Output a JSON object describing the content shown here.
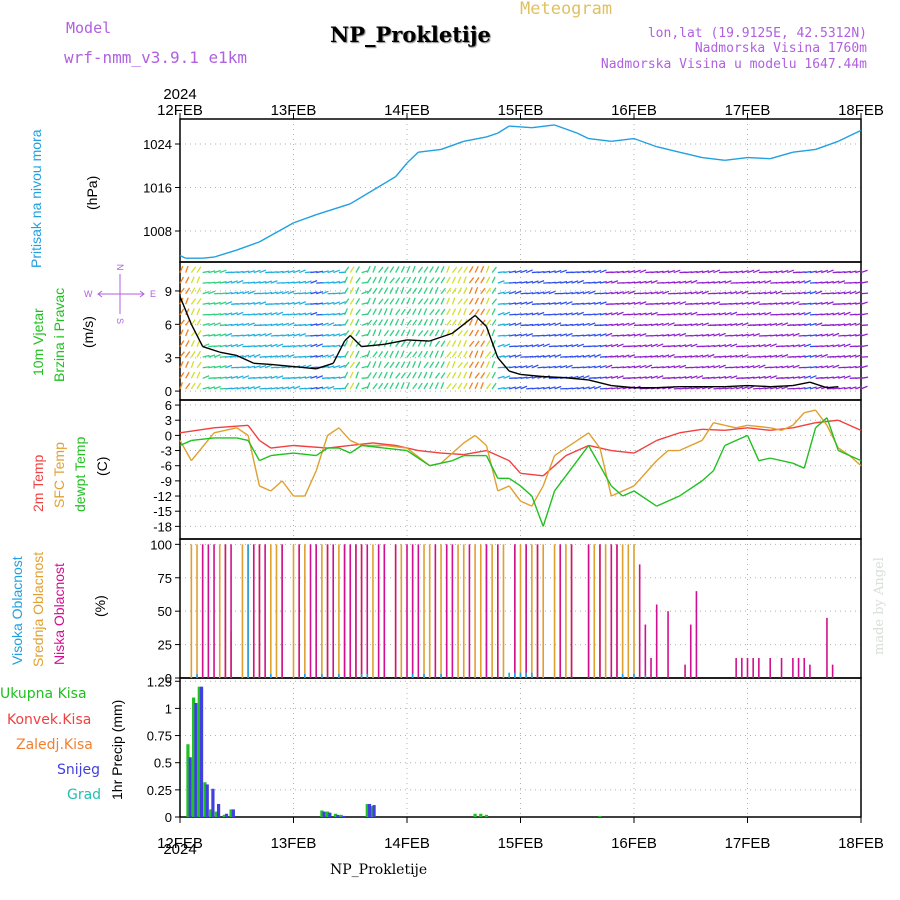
{
  "header": {
    "title": "NP_Prokletije",
    "meteogram": "Meteogram",
    "model_label": "Model",
    "model_name": "wrf-nmm_v3.9.1 e1km",
    "lonlat": "lon,lat (19.9125E, 42.5312N)",
    "altitude": "Nadmorska Visina 1760m",
    "model_altitude": "Nadmorska Visina u modelu 1647.44m",
    "colors": {
      "title": "#000000",
      "meteogram": "#e0c060",
      "model": "#b060e0",
      "info": "#b060e0"
    }
  },
  "footer": {
    "station": "NP_Prokletije",
    "credit": "made by Angel"
  },
  "panels": {
    "pressure": {
      "label": "Pritisak na nivou mora",
      "unit": "(hPa)",
      "label_color": "#20a0e0"
    },
    "wind": {
      "label_line1": "10m Vjetar",
      "label_line2": "Brzina i Pravac",
      "unit": "(m/s)",
      "label_color": "#20c020",
      "compass": {
        "n": "N",
        "s": "S",
        "w": "W",
        "e": "E"
      }
    },
    "temp": {
      "labels": [
        {
          "text": "2m Temp",
          "color": "#f04040"
        },
        {
          "text": "SFC Temp",
          "color": "#e0a030"
        },
        {
          "text": "dewpt Temp",
          "color": "#20c020"
        }
      ],
      "unit": "(C)"
    },
    "cloud": {
      "labels": [
        {
          "text": "Visoka Oblacnost",
          "color": "#20a0e0"
        },
        {
          "text": "Srednja Oblacnost",
          "color": "#e0a030"
        },
        {
          "text": "Niska Oblacnost",
          "color": "#d01090"
        }
      ],
      "unit": "(%)"
    },
    "precip": {
      "unit_label": "1hr Precip (mm)",
      "legend": [
        {
          "text": "Ukupna Kisa",
          "color": "#20c020"
        },
        {
          "text": "Konvek.Kisa",
          "color": "#f04040"
        },
        {
          "text": "Zaledj.Kisa",
          "color": "#f08030"
        },
        {
          "text": "Snijeg",
          "color": "#4040e0"
        },
        {
          "text": "Grad",
          "color": "#20c0b0"
        }
      ]
    }
  },
  "chart_data": [
    {
      "type": "line",
      "panel": "pressure",
      "x_ticks": [
        "12FEB",
        "13FEB",
        "14FEB",
        "15FEB",
        "16FEB",
        "17FEB",
        "18FEB"
      ],
      "year": "2024",
      "xlim": [
        0,
        6
      ],
      "yticks": [
        "1008",
        "1016",
        "1024"
      ],
      "ylim": [
        1002.3,
        1028.6
      ],
      "series": [
        {
          "color": "#20a0e0",
          "x": [
            0,
            0.05,
            0.2,
            0.3,
            0.5,
            0.7,
            1.0,
            1.2,
            1.5,
            1.7,
            1.9,
            2.0,
            2.1,
            2.3,
            2.5,
            2.7,
            2.8,
            2.9,
            3.1,
            3.3,
            3.5,
            3.6,
            3.8,
            4.0,
            4.2,
            4.4,
            4.6,
            4.8,
            5.0,
            5.2,
            5.4,
            5.6,
            5.8,
            6.0
          ],
          "y": [
            1003.5,
            1003.0,
            1003.0,
            1003.2,
            1004.5,
            1006.0,
            1009.5,
            1011.0,
            1013.0,
            1015.5,
            1018.0,
            1020.5,
            1022.5,
            1023.0,
            1024.5,
            1025.3,
            1026.0,
            1027.3,
            1027.0,
            1027.5,
            1026.0,
            1025.0,
            1024.5,
            1025.0,
            1023.5,
            1022.5,
            1021.5,
            1021.0,
            1021.5,
            1021.3,
            1022.5,
            1023.0,
            1024.5,
            1026.5
          ]
        }
      ]
    },
    {
      "type": "line",
      "panel": "wind",
      "xlim": [
        0,
        6
      ],
      "yticks": [
        "0",
        "3",
        "6",
        "9"
      ],
      "ylim": [
        -0.8,
        11.6
      ],
      "series": [
        {
          "name": "speed",
          "color": "#000000",
          "x": [
            0,
            0.1,
            0.2,
            0.35,
            0.5,
            0.65,
            0.8,
            1.0,
            1.2,
            1.35,
            1.45,
            1.5,
            1.6,
            1.8,
            2.0,
            2.2,
            2.4,
            2.6,
            2.7,
            2.8,
            2.9,
            3.0,
            3.2,
            3.4,
            3.6,
            3.8,
            4.0,
            4.2,
            4.4,
            4.6,
            4.8,
            5.0,
            5.2,
            5.4,
            5.55,
            5.7,
            5.8
          ],
          "y": [
            8.5,
            6.0,
            4.0,
            3.5,
            3.2,
            2.5,
            2.4,
            2.2,
            2.0,
            2.5,
            4.5,
            5.0,
            4.0,
            4.2,
            4.6,
            4.5,
            5.2,
            6.8,
            5.8,
            3.0,
            1.8,
            1.5,
            1.3,
            1.2,
            1.0,
            0.5,
            0.3,
            0.3,
            0.4,
            0.4,
            0.4,
            0.5,
            0.4,
            0.5,
            0.8,
            0.3,
            0.4
          ]
        }
      ]
    },
    {
      "type": "line",
      "panel": "temp",
      "xlim": [
        0,
        6
      ],
      "yticks": [
        "-18",
        "-15",
        "-12",
        "-9",
        "-6",
        "-3",
        "0",
        "3",
        "6"
      ],
      "ylim": [
        -20.5,
        7.0
      ],
      "series": [
        {
          "color": "#f04040",
          "x": [
            0,
            0.3,
            0.6,
            0.7,
            0.8,
            1.0,
            1.3,
            1.5,
            1.7,
            1.9,
            2.1,
            2.3,
            2.5,
            2.7,
            2.9,
            3.0,
            3.2,
            3.4,
            3.6,
            3.8,
            4.0,
            4.2,
            4.4,
            4.6,
            4.8,
            5.0,
            5.2,
            5.4,
            5.6,
            5.8,
            6.0
          ],
          "y": [
            0.5,
            1.5,
            2.0,
            -1.0,
            -2.5,
            -2.0,
            -2.5,
            -2.0,
            -1.5,
            -2.0,
            -3.0,
            -3.5,
            -3.8,
            -3.0,
            -5.0,
            -7.5,
            -8.0,
            -4.0,
            -2.0,
            -3.0,
            -3.5,
            -1.0,
            0.5,
            1.2,
            1.0,
            1.5,
            1.0,
            1.5,
            2.5,
            3.0,
            1.0
          ]
        },
        {
          "color": "#e0a030",
          "x": [
            0,
            0.1,
            0.3,
            0.5,
            0.6,
            0.7,
            0.8,
            0.9,
            1.0,
            1.1,
            1.2,
            1.3,
            1.4,
            1.5,
            1.6,
            1.8,
            2.0,
            2.2,
            2.3,
            2.5,
            2.6,
            2.7,
            2.8,
            2.9,
            3.0,
            3.1,
            3.2,
            3.3,
            3.5,
            3.6,
            3.7,
            3.8,
            4.0,
            4.2,
            4.3,
            4.4,
            4.6,
            4.7,
            4.8,
            4.9,
            5.0,
            5.2,
            5.3,
            5.4,
            5.5,
            5.6,
            5.7,
            5.8,
            5.9,
            6.0
          ],
          "y": [
            -1.0,
            -5.0,
            0.5,
            1.5,
            0.0,
            -10.0,
            -11.0,
            -9.0,
            -12.0,
            -12.0,
            -7.0,
            0.0,
            1.5,
            -1.0,
            -2.0,
            -2.0,
            -2.5,
            -6.0,
            -5.5,
            -1.5,
            0.0,
            -2.0,
            -11.0,
            -10.0,
            -13.0,
            -14.0,
            -10.0,
            -4.0,
            -1.0,
            0.5,
            -2.5,
            -12.0,
            -10.0,
            -5.0,
            -3.0,
            -3.0,
            -1.0,
            2.5,
            2.0,
            1.5,
            2.0,
            1.5,
            1.0,
            2.0,
            4.5,
            5.0,
            2.0,
            -2.5,
            -4.0,
            -6.0
          ]
        },
        {
          "color": "#20c020",
          "x": [
            0,
            0.1,
            0.3,
            0.5,
            0.6,
            0.7,
            0.8,
            1.0,
            1.2,
            1.3,
            1.4,
            1.5,
            1.6,
            1.8,
            2.0,
            2.2,
            2.4,
            2.5,
            2.6,
            2.7,
            2.8,
            2.9,
            3.0,
            3.1,
            3.2,
            3.3,
            3.4,
            3.5,
            3.6,
            3.7,
            3.8,
            3.9,
            4.0,
            4.2,
            4.4,
            4.6,
            4.7,
            4.8,
            5.0,
            5.1,
            5.2,
            5.4,
            5.5,
            5.6,
            5.7,
            5.8,
            5.9,
            6.0
          ],
          "y": [
            -2.0,
            -1.0,
            -0.5,
            -0.5,
            -1.0,
            -5.0,
            -4.0,
            -3.5,
            -4.0,
            -2.5,
            -2.5,
            -3.5,
            -2.0,
            -2.5,
            -3.0,
            -6.0,
            -5.0,
            -4.0,
            -4.0,
            -4.0,
            -8.5,
            -8.5,
            -10.0,
            -12.0,
            -18.0,
            -11.0,
            -8.0,
            -5.0,
            -2.0,
            -6.0,
            -10.0,
            -12.0,
            -11.0,
            -14.0,
            -12.0,
            -9.0,
            -7.0,
            -2.0,
            0.0,
            -5.0,
            -4.5,
            -5.5,
            -6.5,
            1.5,
            3.5,
            -3.0,
            -4.0,
            -5.0
          ]
        }
      ]
    },
    {
      "type": "bar",
      "panel": "cloud",
      "xlim": [
        0,
        6
      ],
      "yticks": [
        "0",
        "25",
        "50",
        "75",
        "100"
      ],
      "ylim": [
        0,
        104
      ],
      "series": [
        {
          "name": "Srednja Oblacnost",
          "color": "#e0a030",
          "x": [
            0.1,
            0.15,
            0.2,
            0.35,
            0.4,
            0.45,
            0.55,
            0.6,
            0.65,
            0.7,
            0.8,
            0.85,
            0.9,
            1.0,
            1.05,
            1.1,
            1.2,
            1.25,
            1.3,
            1.4,
            1.45,
            1.55,
            1.6,
            1.7,
            1.8,
            1.9,
            1.95,
            2.05,
            2.15,
            2.2,
            2.3,
            2.35,
            2.45,
            2.5,
            2.6,
            2.65,
            2.7,
            2.75,
            2.8,
            2.85,
            2.95,
            3.0,
            3.05,
            3.1,
            3.15,
            3.2,
            3.3,
            3.35,
            3.4,
            3.45,
            3.6,
            3.65,
            3.7,
            3.75,
            3.8,
            3.85,
            3.9,
            3.95,
            4.0
          ],
          "values": [
            100,
            100,
            100,
            100,
            100,
            35,
            100,
            100,
            100,
            100,
            100,
            100,
            100,
            100,
            100,
            100,
            100,
            100,
            100,
            100,
            100,
            100,
            100,
            100,
            100,
            100,
            100,
            100,
            100,
            100,
            100,
            100,
            100,
            100,
            100,
            100,
            100,
            100,
            100,
            100,
            100,
            100,
            100,
            100,
            100,
            100,
            100,
            100,
            100,
            100,
            100,
            100,
            100,
            100,
            100,
            100,
            100,
            100,
            100
          ]
        },
        {
          "name": "Niska Oblacnost",
          "color": "#d01090",
          "x": [
            0.2,
            0.25,
            0.3,
            0.4,
            0.45,
            0.65,
            0.7,
            0.75,
            0.9,
            1.05,
            1.15,
            1.2,
            1.3,
            1.35,
            1.45,
            1.5,
            1.55,
            1.6,
            1.65,
            1.75,
            1.8,
            1.9,
            2.0,
            2.05,
            2.1,
            2.25,
            2.35,
            2.4,
            2.55,
            2.7,
            2.8,
            2.95,
            3.05,
            3.15,
            3.35,
            3.45,
            3.6,
            3.7,
            3.8,
            3.85,
            4.05,
            4.1,
            4.15,
            4.2,
            4.3,
            4.45,
            4.5,
            4.55,
            4.9,
            4.95,
            5.0,
            5.05,
            5.1,
            5.2,
            5.3,
            5.4,
            5.45,
            5.5,
            5.55,
            5.7,
            5.75
          ],
          "values": [
            100,
            100,
            100,
            100,
            100,
            100,
            100,
            100,
            100,
            100,
            100,
            100,
            100,
            100,
            100,
            100,
            100,
            100,
            100,
            100,
            100,
            100,
            100,
            100,
            100,
            100,
            100,
            100,
            100,
            100,
            100,
            100,
            100,
            100,
            100,
            100,
            100,
            100,
            100,
            100,
            85,
            40,
            15,
            55,
            50,
            10,
            40,
            65,
            15,
            15,
            15,
            15,
            15,
            15,
            15,
            15,
            15,
            15,
            10,
            45,
            10
          ]
        },
        {
          "name": "Visoka Oblacnost",
          "color": "#20a0e0",
          "x": [
            0.15,
            0.6,
            0.8,
            1.1,
            1.25,
            1.4,
            1.6,
            1.65,
            2.05,
            2.15,
            2.3,
            2.9,
            2.95,
            3.0,
            3.05,
            3.1,
            3.9,
            4.0,
            4.1
          ],
          "values": [
            3,
            100,
            3,
            3,
            3,
            3,
            3,
            3,
            3,
            3,
            3,
            4,
            4,
            4,
            4,
            4,
            3,
            3,
            2
          ]
        }
      ]
    },
    {
      "type": "bar",
      "panel": "precip",
      "xlim": [
        0,
        6
      ],
      "yticks": [
        "0",
        "0.25",
        "0.5",
        "0.75",
        "1",
        "1.25"
      ],
      "ylim": [
        0,
        1.28
      ],
      "series": [
        {
          "name": "Ukupna Kisa",
          "color": "#20c020",
          "x": [
            0.07,
            0.12,
            0.17,
            0.22,
            0.27,
            0.32,
            0.39,
            0.45,
            1.25,
            1.3,
            1.37,
            1.42,
            1.65,
            1.69,
            2.6,
            2.65,
            2.7,
            3.7
          ],
          "values": [
            0.67,
            1.1,
            1.2,
            0.32,
            0.07,
            0.05,
            0.02,
            0.07,
            0.06,
            0.05,
            0.03,
            0.02,
            0.12,
            0.1,
            0.03,
            0.03,
            0.02,
            0.01
          ]
        },
        {
          "name": "Snijeg",
          "color": "#4040e0",
          "x": [
            0.09,
            0.14,
            0.19,
            0.24,
            0.29,
            0.34,
            0.41,
            0.47,
            1.27,
            1.32,
            1.39,
            1.44,
            1.67,
            1.71
          ],
          "values": [
            0.55,
            1.05,
            1.2,
            0.3,
            0.26,
            0.12,
            0.03,
            0.07,
            0.05,
            0.04,
            0.02,
            0.01,
            0.12,
            0.11
          ]
        }
      ]
    }
  ]
}
